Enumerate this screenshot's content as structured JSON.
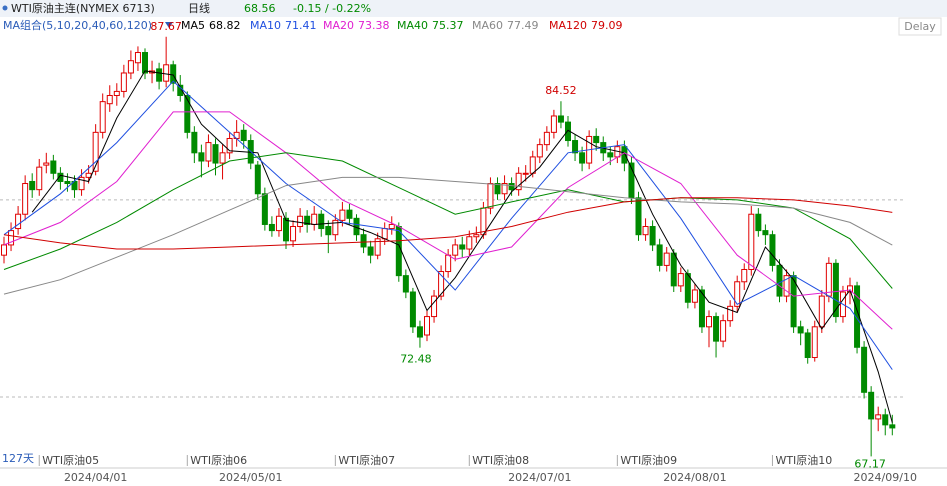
{
  "header": {
    "title": "WTI原油主连(NYMEX 6713)",
    "period": "日线",
    "change": "-0.15 / -0.22%",
    "ma_group": "MA组合(5,10,20,40,60,120)",
    "delay": "Delay",
    "days": "127天"
  },
  "chart_data": {
    "type": "candlestick",
    "ylim": [
      66.7,
      88.0
    ],
    "ref_lines": [
      79.7,
      70.07
    ],
    "up_color": "#e00000",
    "down_color": "#008a00",
    "candles": [
      [
        77.0,
        77.9,
        76.6,
        77.5
      ],
      [
        77.5,
        78.6,
        77.2,
        78.2
      ],
      [
        78.3,
        79.4,
        78.0,
        79.0
      ],
      [
        79.0,
        80.9,
        78.7,
        80.5
      ],
      [
        80.6,
        81.0,
        79.8,
        80.2
      ],
      [
        80.2,
        81.7,
        79.9,
        81.3
      ],
      [
        81.4,
        82.0,
        81.0,
        81.5
      ],
      [
        81.6,
        81.9,
        80.7,
        81.0
      ],
      [
        81.0,
        81.3,
        80.2,
        80.6
      ],
      [
        80.6,
        81.0,
        80.1,
        80.5
      ],
      [
        80.6,
        80.9,
        79.8,
        80.2
      ],
      [
        80.2,
        81.2,
        79.9,
        80.8
      ],
      [
        80.8,
        81.4,
        80.5,
        81.0
      ],
      [
        81.1,
        83.4,
        80.9,
        83.0
      ],
      [
        83.0,
        84.9,
        82.7,
        84.5
      ],
      [
        84.4,
        85.3,
        84.0,
        84.8
      ],
      [
        84.8,
        85.4,
        84.3,
        85.0
      ],
      [
        85.0,
        86.3,
        84.7,
        85.9
      ],
      [
        85.9,
        87.0,
        85.6,
        86.5
      ],
      [
        86.4,
        87.2,
        86.0,
        86.9
      ],
      [
        86.9,
        87.1,
        85.6,
        85.9
      ],
      [
        85.9,
        86.5,
        85.4,
        86.0
      ],
      [
        86.1,
        86.4,
        85.1,
        85.5
      ],
      [
        85.5,
        87.67,
        85.2,
        86.3
      ],
      [
        86.3,
        86.5,
        85.0,
        85.4
      ],
      [
        85.3,
        85.8,
        84.5,
        84.8
      ],
      [
        84.8,
        85.0,
        82.7,
        83.0
      ],
      [
        83.0,
        83.3,
        81.5,
        82.0
      ],
      [
        82.0,
        82.4,
        80.8,
        81.6
      ],
      [
        81.6,
        82.9,
        81.3,
        82.5
      ],
      [
        82.4,
        82.7,
        80.9,
        81.5
      ],
      [
        81.5,
        82.4,
        80.7,
        82.0
      ],
      [
        82.0,
        83.0,
        81.7,
        82.7
      ],
      [
        82.7,
        83.6,
        82.3,
        83.0
      ],
      [
        83.1,
        83.4,
        82.2,
        82.6
      ],
      [
        82.6,
        82.9,
        81.2,
        81.5
      ],
      [
        81.4,
        81.6,
        79.7,
        80.0
      ],
      [
        80.0,
        80.3,
        78.2,
        78.5
      ],
      [
        78.5,
        78.9,
        77.9,
        78.2
      ],
      [
        78.2,
        79.3,
        77.9,
        78.9
      ],
      [
        78.8,
        79.1,
        77.3,
        77.7
      ],
      [
        77.7,
        78.7,
        77.4,
        78.4
      ],
      [
        78.4,
        79.3,
        78.1,
        78.9
      ],
      [
        78.9,
        79.2,
        78.1,
        78.5
      ],
      [
        78.5,
        79.4,
        78.2,
        79.0
      ],
      [
        79.0,
        79.2,
        77.9,
        78.3
      ],
      [
        78.4,
        78.7,
        77.1,
        78.0
      ],
      [
        78.0,
        79.0,
        77.7,
        78.7
      ],
      [
        78.7,
        79.6,
        78.4,
        79.2
      ],
      [
        79.2,
        79.5,
        78.5,
        78.8
      ],
      [
        78.8,
        79.0,
        77.7,
        78.0
      ],
      [
        78.0,
        78.3,
        77.1,
        77.4
      ],
      [
        77.4,
        77.7,
        76.6,
        77.0
      ],
      [
        77.0,
        78.1,
        76.8,
        77.8
      ],
      [
        77.8,
        78.6,
        77.5,
        78.3
      ],
      [
        78.3,
        78.9,
        78.0,
        78.5
      ],
      [
        78.4,
        78.6,
        75.7,
        76.0
      ],
      [
        76.0,
        76.3,
        74.9,
        75.2
      ],
      [
        75.2,
        75.4,
        73.2,
        73.5
      ],
      [
        73.5,
        73.8,
        72.48,
        73.0
      ],
      [
        73.1,
        74.3,
        72.8,
        74.0
      ],
      [
        74.0,
        75.3,
        73.7,
        75.0
      ],
      [
        75.0,
        76.5,
        74.8,
        76.2
      ],
      [
        76.2,
        77.3,
        75.9,
        77.0
      ],
      [
        77.0,
        77.8,
        76.7,
        77.5
      ],
      [
        77.5,
        77.9,
        76.9,
        77.3
      ],
      [
        77.3,
        78.2,
        77.0,
        77.9
      ],
      [
        77.9,
        78.4,
        77.6,
        78.0
      ],
      [
        78.0,
        79.6,
        77.8,
        79.3
      ],
      [
        79.3,
        80.8,
        79.0,
        80.5
      ],
      [
        80.5,
        80.8,
        79.7,
        80.0
      ],
      [
        80.0,
        80.9,
        79.7,
        80.5
      ],
      [
        80.5,
        80.8,
        79.9,
        80.2
      ],
      [
        80.2,
        81.3,
        79.9,
        81.0
      ],
      [
        81.0,
        81.4,
        80.6,
        81.0
      ],
      [
        81.0,
        82.1,
        80.8,
        81.8
      ],
      [
        81.8,
        82.7,
        81.5,
        82.4
      ],
      [
        82.4,
        83.3,
        82.1,
        83.0
      ],
      [
        83.0,
        84.1,
        82.7,
        83.8
      ],
      [
        83.8,
        84.52,
        83.2,
        83.5
      ],
      [
        83.5,
        83.8,
        82.3,
        82.6
      ],
      [
        82.6,
        82.9,
        81.6,
        82.0
      ],
      [
        82.0,
        82.3,
        81.1,
        81.5
      ],
      [
        81.5,
        83.1,
        81.2,
        82.8
      ],
      [
        82.8,
        83.2,
        82.1,
        82.5
      ],
      [
        82.5,
        82.8,
        81.6,
        82.0
      ],
      [
        82.0,
        82.3,
        81.4,
        81.8
      ],
      [
        81.8,
        82.6,
        81.5,
        82.3
      ],
      [
        82.3,
        82.6,
        81.1,
        81.5
      ],
      [
        81.5,
        81.8,
        79.5,
        79.8
      ],
      [
        79.8,
        80.1,
        77.7,
        78.0
      ],
      [
        78.0,
        78.8,
        77.7,
        78.4
      ],
      [
        78.4,
        78.7,
        77.2,
        77.5
      ],
      [
        77.5,
        77.8,
        76.2,
        76.5
      ],
      [
        76.5,
        77.4,
        76.2,
        77.1
      ],
      [
        77.1,
        77.3,
        75.2,
        75.5
      ],
      [
        75.5,
        76.4,
        75.2,
        76.1
      ],
      [
        76.1,
        76.3,
        74.4,
        74.7
      ],
      [
        74.7,
        75.6,
        74.4,
        75.3
      ],
      [
        75.3,
        75.5,
        73.2,
        73.5
      ],
      [
        73.5,
        74.3,
        72.5,
        74.0
      ],
      [
        74.0,
        74.2,
        72.0,
        72.8
      ],
      [
        72.8,
        74.1,
        72.5,
        73.8
      ],
      [
        73.8,
        74.8,
        73.5,
        74.5
      ],
      [
        74.5,
        76.0,
        74.2,
        75.7
      ],
      [
        75.7,
        76.6,
        75.3,
        76.3
      ],
      [
        76.3,
        79.4,
        76.0,
        79.0
      ],
      [
        79.0,
        79.3,
        77.9,
        78.2
      ],
      [
        78.2,
        78.5,
        77.5,
        78.0
      ],
      [
        78.0,
        78.2,
        76.2,
        76.5
      ],
      [
        76.5,
        76.8,
        74.7,
        75.0
      ],
      [
        75.0,
        76.3,
        74.7,
        76.0
      ],
      [
        76.0,
        76.2,
        73.2,
        73.5
      ],
      [
        73.5,
        73.8,
        72.6,
        73.2
      ],
      [
        73.2,
        73.4,
        71.7,
        72.0
      ],
      [
        72.0,
        73.8,
        71.8,
        73.5
      ],
      [
        73.5,
        75.3,
        73.2,
        75.0
      ],
      [
        75.0,
        76.9,
        74.7,
        76.6
      ],
      [
        76.6,
        76.8,
        73.7,
        74.0
      ],
      [
        74.0,
        75.5,
        73.7,
        75.2
      ],
      [
        75.2,
        75.9,
        74.6,
        75.5
      ],
      [
        75.5,
        75.7,
        72.2,
        72.5
      ],
      [
        72.5,
        72.8,
        70.0,
        70.3
      ],
      [
        70.3,
        70.6,
        67.17,
        69.0
      ],
      [
        69.0,
        69.6,
        68.4,
        69.2
      ],
      [
        69.2,
        69.5,
        68.2,
        68.71
      ],
      [
        68.71,
        69.2,
        68.2,
        68.56
      ]
    ],
    "series": [
      {
        "name": "MA5",
        "color": "#000000",
        "x": [
          4,
          8,
          12,
          16,
          20,
          24,
          28,
          32,
          36,
          40,
          44,
          48,
          52,
          56,
          60,
          64,
          68,
          72,
          76,
          80,
          84,
          88,
          92,
          96,
          100,
          104,
          108,
          112,
          116,
          120,
          124,
          126
        ],
        "values": [
          79.1,
          80.9,
          80.6,
          83.7,
          86.0,
          85.8,
          83.4,
          82.1,
          82.0,
          78.7,
          78.5,
          78.6,
          78.1,
          77.5,
          74.3,
          75.9,
          78.0,
          80.1,
          81.3,
          83.1,
          82.3,
          82.0,
          79.0,
          76.5,
          74.7,
          74.2,
          77.4,
          75.8,
          73.4,
          75.3,
          71.3,
          68.82
        ]
      },
      {
        "name": "MA10",
        "color": "#1f4fe0",
        "x": [
          0,
          8,
          16,
          24,
          32,
          40,
          48,
          56,
          64,
          72,
          80,
          88,
          96,
          104,
          112,
          120,
          126
        ],
        "values": [
          78.0,
          80.0,
          82.5,
          85.5,
          83.0,
          80.5,
          78.6,
          78.2,
          75.3,
          78.8,
          82.0,
          82.4,
          78.8,
          74.6,
          76.0,
          74.4,
          71.41
        ]
      },
      {
        "name": "MA20",
        "color": "#e020d0",
        "x": [
          0,
          8,
          16,
          24,
          32,
          40,
          48,
          56,
          64,
          72,
          80,
          88,
          96,
          104,
          112,
          120,
          126
        ],
        "values": [
          77.5,
          78.6,
          80.6,
          84.0,
          84.0,
          82.0,
          79.7,
          78.4,
          76.8,
          77.4,
          80.3,
          82.0,
          80.5,
          77.0,
          75.0,
          75.3,
          73.38
        ]
      },
      {
        "name": "MA40",
        "color": "#008a00",
        "x": [
          0,
          8,
          16,
          24,
          32,
          40,
          48,
          56,
          64,
          72,
          80,
          88,
          96,
          104,
          112,
          120,
          126
        ],
        "values": [
          76.3,
          77.3,
          78.6,
          80.2,
          81.6,
          82.0,
          81.6,
          80.3,
          79.0,
          79.6,
          80.2,
          79.6,
          79.8,
          79.7,
          79.3,
          77.8,
          75.37
        ]
      },
      {
        "name": "MA60",
        "color": "#888888",
        "x": [
          0,
          8,
          16,
          24,
          32,
          40,
          48,
          56,
          64,
          72,
          80,
          88,
          96,
          104,
          112,
          120,
          126
        ],
        "values": [
          75.1,
          75.8,
          76.9,
          78.0,
          79.2,
          80.4,
          80.8,
          80.8,
          80.6,
          80.4,
          80.1,
          79.8,
          79.6,
          79.5,
          79.3,
          78.6,
          77.49
        ]
      },
      {
        "name": "MA120",
        "color": "#d00000",
        "x": [
          0,
          8,
          16,
          24,
          32,
          40,
          48,
          56,
          64,
          72,
          80,
          88,
          96,
          104,
          112,
          120,
          126
        ],
        "values": [
          78.0,
          77.6,
          77.3,
          77.3,
          77.4,
          77.5,
          77.6,
          77.7,
          77.9,
          78.4,
          79.1,
          79.6,
          79.8,
          79.8,
          79.7,
          79.4,
          79.09
        ]
      }
    ],
    "date_labels": [
      {
        "index": 13,
        "label": "2024/04/01"
      },
      {
        "index": 35,
        "label": "2024/05/01"
      },
      {
        "index": 76,
        "label": "2024/07/01"
      },
      {
        "index": 98,
        "label": "2024/08/01"
      },
      {
        "index": 125,
        "label": "2024/09/10"
      }
    ],
    "contract_labels": [
      {
        "index": 5,
        "label": "WTI原油05"
      },
      {
        "index": 26,
        "label": "WTI原油06"
      },
      {
        "index": 47,
        "label": "WTI原油07"
      },
      {
        "index": 66,
        "label": "WTI原油08"
      },
      {
        "index": 87,
        "label": "WTI原油09"
      },
      {
        "index": 109,
        "label": "WTI原油10"
      }
    ]
  }
}
